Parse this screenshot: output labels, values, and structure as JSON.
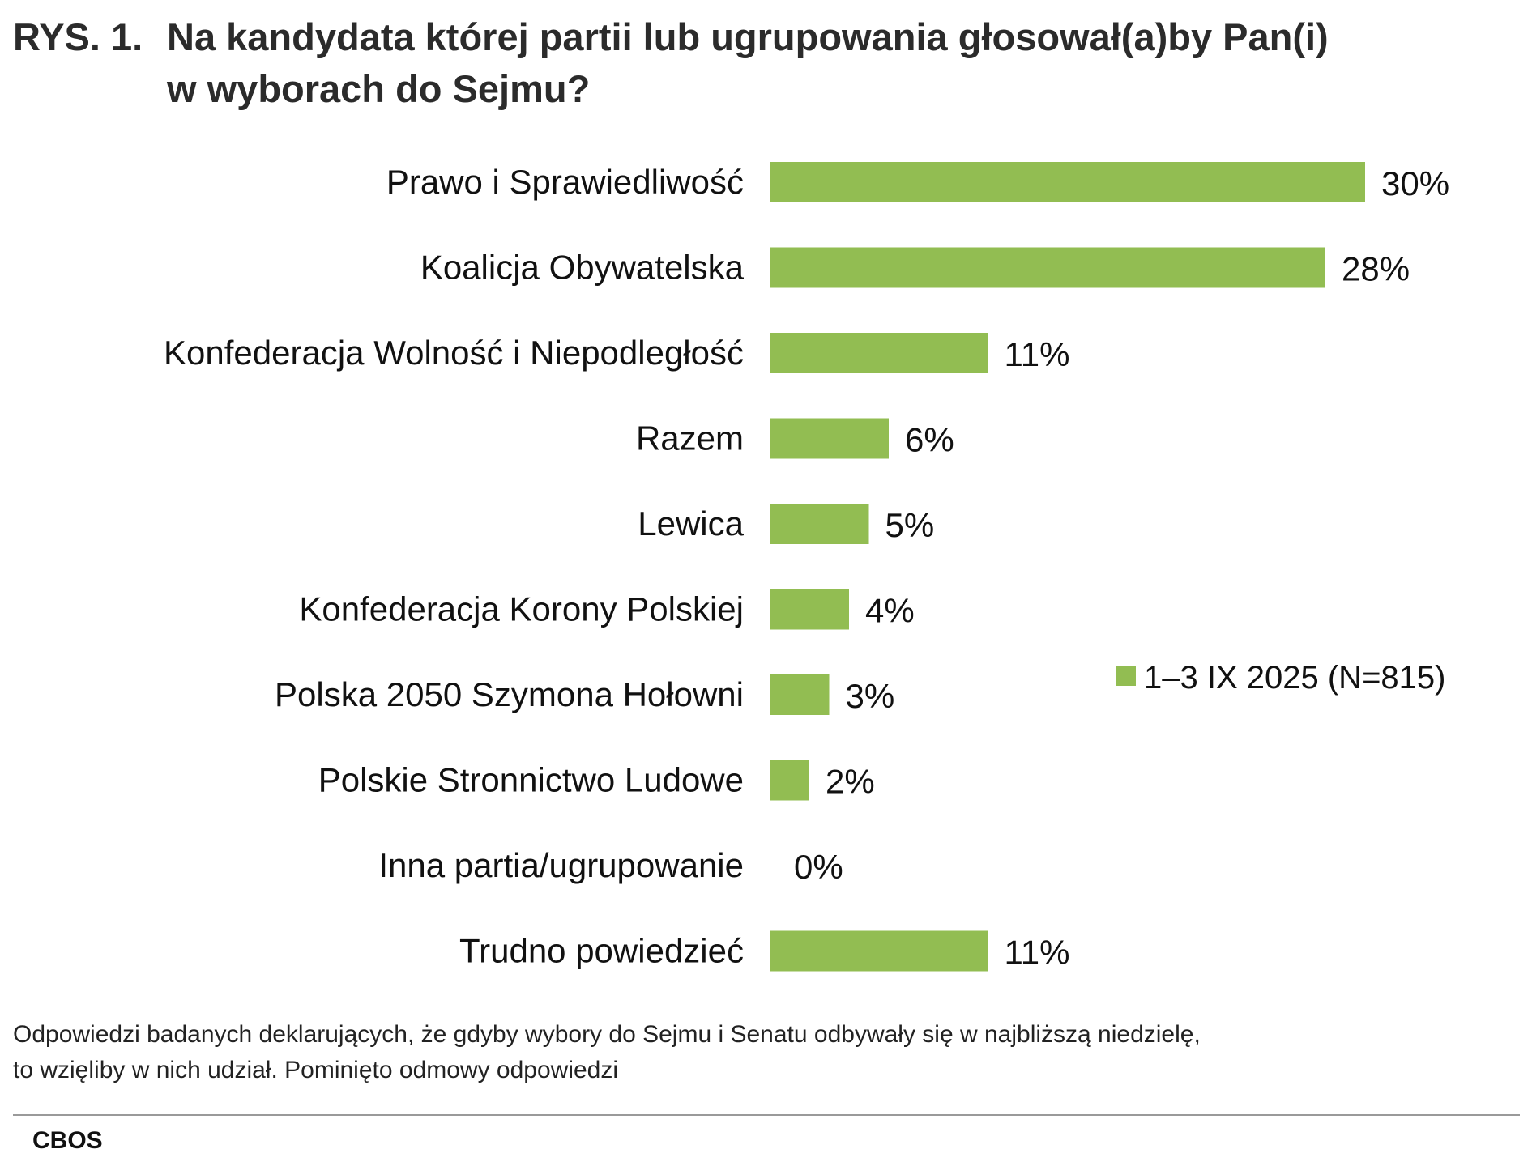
{
  "title": {
    "prefix": "RYS. 1.",
    "line1": "Na kandydata której partii lub ugrupowania głosował(a)by Pan(i)",
    "line2": "w wyborach do Sejmu?"
  },
  "chart_data": {
    "type": "bar",
    "orientation": "horizontal",
    "categories": [
      "Prawo i Sprawiedliwość",
      "Koalicja Obywatelska",
      "Konfederacja Wolność i Niepodległość",
      "Razem",
      "Lewica",
      "Konfederacja Korony Polskiej",
      "Polska 2050 Szymona Hołowni",
      "Polskie Stronnictwo Ludowe",
      "Inna partia/ugrupowanie",
      "Trudno powiedzieć"
    ],
    "series": [
      {
        "name": "1–3 IX 2025 (N=815)",
        "values": [
          30,
          28,
          11,
          6,
          5,
          4,
          3,
          2,
          0,
          11
        ],
        "labels": [
          "30%",
          "28%",
          "11%",
          "6%",
          "5%",
          "4%",
          "3%",
          "2%",
          "0%",
          "11%"
        ],
        "color": "#92bd52"
      }
    ],
    "xlim": [
      0,
      30
    ],
    "grid": false,
    "legend_placement": "right"
  },
  "footnote": {
    "line1": "Odpowiedzi badanych deklarujących, że gdyby wybory do Sejmu i Senatu odbywały się w najbliższą niedzielę,",
    "line2": "to wzięliby w nich udział. Pominięto odmowy odpowiedzi"
  },
  "source": "CBOS"
}
